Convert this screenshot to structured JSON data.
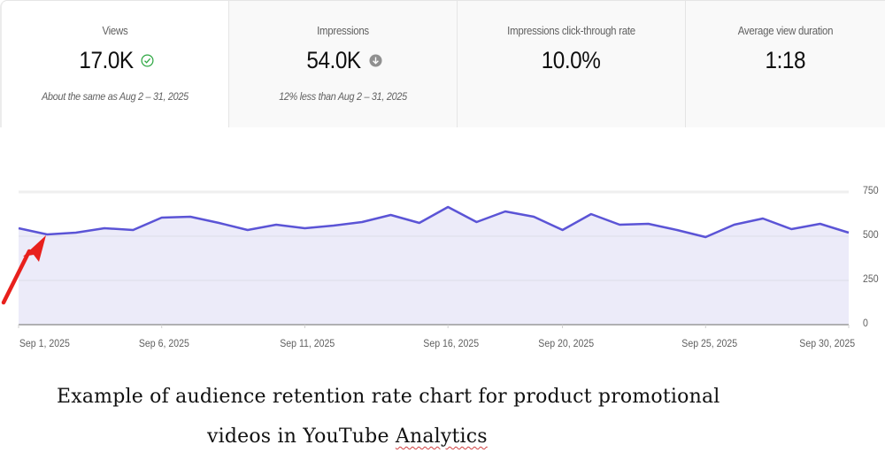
{
  "metrics": [
    {
      "label": "Views",
      "value": "17.0K",
      "icon": "check-circle-icon",
      "icon_color": "#2ba640",
      "comparison": "About the same as Aug 2 – 31, 2025",
      "selected": true
    },
    {
      "label": "Impressions",
      "value": "54.0K",
      "icon": "arrow-down-circle-icon",
      "icon_color": "#909090",
      "comparison": "12% less than Aug 2 – 31, 2025",
      "selected": false
    },
    {
      "label": "Impressions click-through rate",
      "value": "10.0%",
      "selected": false
    },
    {
      "label": "Average view duration",
      "value": "1:18",
      "selected": false
    }
  ],
  "chart": {
    "line_color": "#5b54d6",
    "fill_color": "#ecebf9",
    "y_ticks": [
      "750",
      "500",
      "250",
      "0"
    ],
    "x_ticks": [
      "Sep 1, 2025",
      "Sep 6, 2025",
      "Sep 11, 2025",
      "Sep 16, 2025",
      "Sep 20, 2025",
      "Sep 25, 2025",
      "Sep 30, 2025"
    ]
  },
  "annotation": {
    "arrow_color": "#e8201c",
    "points_to": "Sep 2, 2025"
  },
  "caption": {
    "line1": "Example of audience retention rate chart for product promotional",
    "line2_prefix": "videos in YouTube ",
    "line2_underlined": "Analytics"
  },
  "chart_data": {
    "type": "area",
    "title": "",
    "xlabel": "",
    "ylabel": "Views",
    "x": [
      "Sep 1",
      "Sep 2",
      "Sep 3",
      "Sep 4",
      "Sep 5",
      "Sep 6",
      "Sep 7",
      "Sep 8",
      "Sep 9",
      "Sep 10",
      "Sep 11",
      "Sep 12",
      "Sep 13",
      "Sep 14",
      "Sep 15",
      "Sep 16",
      "Sep 17",
      "Sep 18",
      "Sep 19",
      "Sep 20",
      "Sep 21",
      "Sep 22",
      "Sep 23",
      "Sep 24",
      "Sep 25",
      "Sep 26",
      "Sep 27",
      "Sep 28",
      "Sep 29",
      "Sep 30"
    ],
    "series": [
      {
        "name": "Views",
        "values": [
          545,
          510,
          520,
          545,
          535,
          605,
          610,
          575,
          535,
          565,
          545,
          560,
          580,
          620,
          575,
          665,
          580,
          640,
          610,
          535,
          625,
          565,
          570,
          535,
          495,
          565,
          600,
          540,
          570,
          520
        ]
      }
    ],
    "ylim": [
      0,
      750
    ],
    "y_ticks": [
      0,
      250,
      500,
      750
    ],
    "x_tick_labels": [
      "Sep 1, 2025",
      "Sep 6, 2025",
      "Sep 11, 2025",
      "Sep 16, 2025",
      "Sep 20, 2025",
      "Sep 25, 2025",
      "Sep 30, 2025"
    ],
    "grid": true,
    "y_axis_position": "right",
    "legend": null
  }
}
